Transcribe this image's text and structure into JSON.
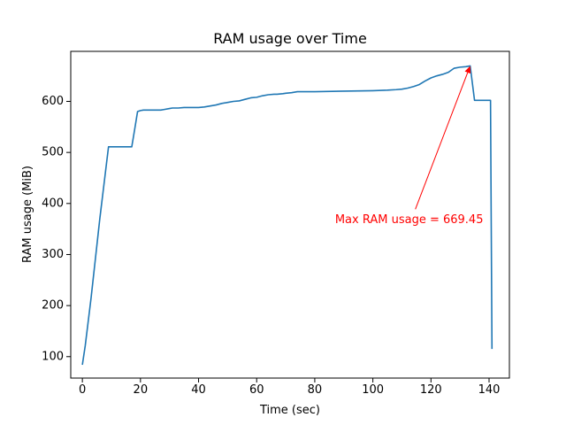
{
  "chart_data": {
    "type": "line",
    "title": "RAM usage over Time",
    "xlabel": "Time (sec)",
    "ylabel": "RAM usage (MiB)",
    "xlim": [
      -4,
      147
    ],
    "ylim": [
      58,
      698
    ],
    "xticks": [
      0,
      20,
      40,
      60,
      80,
      100,
      120,
      140
    ],
    "yticks": [
      100,
      200,
      300,
      400,
      500,
      600
    ],
    "grid": false,
    "series": [
      {
        "color": "#1f77b4",
        "x": [
          0,
          1,
          3,
          6,
          9,
          10,
          12,
          14,
          15,
          17,
          18,
          19,
          20,
          21,
          23,
          25,
          27,
          28,
          30,
          31,
          33,
          35,
          37,
          38,
          40,
          42,
          44,
          46,
          48,
          50,
          52,
          54,
          56,
          58,
          60,
          62,
          64,
          66,
          67,
          69,
          70,
          72,
          74,
          76,
          78,
          80,
          90,
          100,
          105,
          108,
          110,
          112,
          114,
          116,
          118,
          120,
          122,
          124,
          126,
          128,
          130,
          132,
          133.5,
          135,
          137,
          139,
          140.5,
          141
        ],
        "y": [
          84,
          122,
          215,
          370,
          511,
          511,
          511,
          511,
          511,
          511,
          545,
          580,
          582,
          583,
          583,
          583,
          583,
          584,
          586,
          587,
          587,
          588,
          588,
          588,
          588,
          589,
          591,
          593,
          596,
          598,
          600,
          601,
          604,
          607,
          608,
          611,
          613,
          614,
          614,
          615,
          616,
          617,
          619,
          619,
          619,
          619,
          620,
          621,
          622,
          623,
          624,
          626,
          629,
          633,
          640,
          646,
          650,
          653,
          657,
          665,
          667,
          668,
          669.45,
          602,
          602,
          602,
          602,
          115
        ]
      }
    ],
    "annotation": {
      "text": "Max RAM usage = 669.45",
      "color": "#ff0000",
      "point": [
        133.5,
        669.45
      ],
      "text_position": [
        112.5,
        368
      ]
    }
  }
}
